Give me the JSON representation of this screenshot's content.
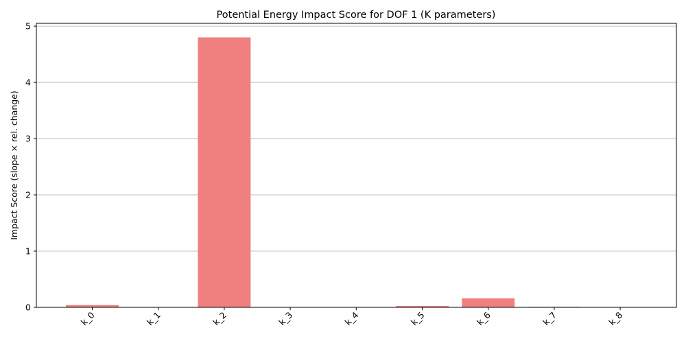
{
  "chart_data": {
    "type": "bar",
    "title": "Potential Energy Impact Score for DOF 1 (K parameters)",
    "xlabel": "",
    "ylabel": "Impact Score (slope × rel. change)",
    "categories": [
      "k_0",
      "k_1",
      "k_2",
      "k_3",
      "k_4",
      "k_5",
      "k_6",
      "k_7",
      "k_8"
    ],
    "values": [
      0.04,
      0.0,
      4.8,
      0.0,
      0.0,
      0.025,
      0.16,
      0.01,
      0.0
    ],
    "ylim": [
      0,
      5.05
    ],
    "yticks": [
      0,
      1,
      2,
      3,
      4,
      5
    ],
    "grid": "y",
    "legend": "none",
    "bar_color": "#f08080",
    "xtick_rotation": -45
  }
}
